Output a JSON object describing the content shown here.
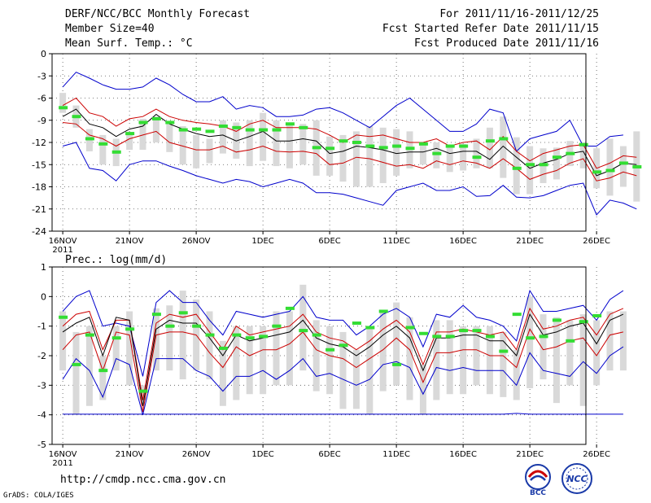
{
  "header": {
    "title": "DERF/NCC/BCC Monthly Forecast",
    "member_size": "Member Size=40",
    "variable": "Mean Surf. Temp.: °C",
    "forecast_period": "For 2011/11/16-2011/12/25",
    "start_date": "Fcst Started Refer Date 2011/11/15",
    "produced_date": "Fcst Produced Date 2011/11/16"
  },
  "footer": {
    "url": "http://cmdp.ncc.cma.gov.cn",
    "credit": "GrADS: COLA/IGES",
    "logo_left": "BCC",
    "logo_right": "NCC"
  },
  "colors": {
    "envelope": "#0000cc",
    "quartile": "#cc0000",
    "mean": "#000000",
    "box": "#d9d9d9",
    "marker": "#33dd33",
    "grid": "#555555"
  },
  "chart_data": [
    {
      "type": "line",
      "name": "temperature",
      "title": "Mean Surf. Temp.: °C",
      "ylim": [
        -24,
        0
      ],
      "yticks": [
        0,
        -3,
        -6,
        -9,
        -12,
        -15,
        -18,
        -21,
        -24
      ],
      "xlim": [
        0,
        40
      ],
      "xtick_days": [
        0,
        5,
        10,
        15,
        20,
        25,
        30,
        35,
        40
      ],
      "xtick_labels": [
        "16NOV",
        "21NOV",
        "26NOV",
        "1DEC",
        "6DEC",
        "11DEC",
        "16DEC",
        "21DEC",
        "26DEC"
      ],
      "year_label": "2011",
      "series": [
        {
          "name": "max",
          "values": [
            -4.5,
            -2.5,
            -3.3,
            -4.2,
            -4.8,
            -4.8,
            -4.5,
            -3.3,
            -4.2,
            -5.5,
            -6.5,
            -6.5,
            -5.8,
            -7.5,
            -7.0,
            -7.3,
            -8.5,
            -8.5,
            -8.3,
            -7.5,
            -7.3,
            -8.0,
            -9.0,
            -10.0,
            -8.5,
            -7.0,
            -6.0,
            -7.5,
            -9.0,
            -10.5,
            -10.5,
            -9.5,
            -7.5,
            -8.0,
            -13.2,
            -11.5,
            -11.0,
            -10.5,
            -9.0,
            -12.5,
            -12.5,
            -11.2,
            -11.0
          ]
        },
        {
          "name": "q75",
          "values": [
            -7.0,
            -6.0,
            -8.0,
            -8.5,
            -9.8,
            -8.8,
            -8.5,
            -7.5,
            -8.5,
            -9.0,
            -9.3,
            -9.5,
            -9.8,
            -10.5,
            -9.5,
            -9.0,
            -10.0,
            -10.0,
            -10.0,
            -10.2,
            -11.0,
            -12.0,
            -11.0,
            -11.2,
            -11.0,
            -11.5,
            -12.0,
            -12.0,
            -11.5,
            -12.5,
            -12.0,
            -11.8,
            -13.0,
            -11.2,
            -13.2,
            -14.5,
            -13.5,
            -13.0,
            -12.5,
            -12.3,
            -15.5,
            -14.8,
            -13.8,
            -14.0
          ]
        },
        {
          "name": "mean",
          "values": [
            -8.5,
            -7.5,
            -9.5,
            -10.0,
            -11.2,
            -10.2,
            -9.8,
            -8.2,
            -9.5,
            -10.2,
            -10.8,
            -11.2,
            -11.0,
            -11.8,
            -11.2,
            -10.5,
            -11.8,
            -11.8,
            -11.5,
            -11.8,
            -13.5,
            -13.2,
            -12.5,
            -12.7,
            -13.0,
            -13.5,
            -13.3,
            -13.3,
            -12.8,
            -13.5,
            -13.2,
            -13.2,
            -14.3,
            -12.5,
            -14.0,
            -15.5,
            -14.8,
            -14.3,
            -13.5,
            -13.2,
            -16.5,
            -15.8,
            -14.8,
            -15.0
          ]
        },
        {
          "name": "q25",
          "values": [
            -9.3,
            -9.5,
            -11.0,
            -11.5,
            -12.5,
            -11.5,
            -11.0,
            -10.5,
            -12.0,
            -12.5,
            -13.0,
            -13.0,
            -12.5,
            -13.3,
            -13.0,
            -12.5,
            -13.2,
            -13.3,
            -13.2,
            -13.5,
            -15.0,
            -14.8,
            -14.0,
            -14.2,
            -14.7,
            -15.2,
            -15.0,
            -15.5,
            -14.5,
            -15.0,
            -14.5,
            -14.8,
            -15.5,
            -14.2,
            -15.5,
            -17.0,
            -16.3,
            -15.8,
            -14.8,
            -14.2,
            -17.2,
            -16.8,
            -16.0,
            -16.5
          ]
        },
        {
          "name": "min",
          "values": [
            -12.5,
            -12.0,
            -15.5,
            -15.8,
            -17.2,
            -15.0,
            -14.5,
            -14.5,
            -15.2,
            -15.8,
            -16.5,
            -17.0,
            -17.5,
            -17.0,
            -17.3,
            -18.0,
            -17.5,
            -17.0,
            -17.5,
            -18.8,
            -18.8,
            -19.0,
            -19.5,
            -20.0,
            -20.5,
            -18.5,
            -18.0,
            -17.5,
            -18.5,
            -18.5,
            -18.0,
            -19.3,
            -19.2,
            -17.8,
            -19.4,
            -19.5,
            -19.2,
            -18.5,
            -17.8,
            -17.5,
            -21.8,
            -19.8,
            -20.2,
            -21.0
          ]
        },
        {
          "name": "box_high",
          "values": [
            -5.3,
            -7.0,
            -10.2,
            -11.0,
            -11.5,
            -11.0,
            -8.8,
            -8.5,
            -9.5,
            -9.8,
            -11.0,
            -11.5,
            -9.0,
            -9.3,
            -9.0,
            -8.0,
            -9.0,
            -9.5,
            -9.5,
            -9.0,
            -11.2,
            -11.0,
            -10.5,
            -9.8,
            -10.0,
            -10.2,
            -10.5,
            -12.0,
            -12.0,
            -12.5,
            -12.2,
            -11.5,
            -10.0,
            -8.5,
            -11.3,
            -12.5,
            -12.8,
            -12.7,
            -11.8,
            -12.0,
            -12.8,
            -11.5,
            -12.5,
            -10.5
          ]
        },
        {
          "name": "box_low",
          "values": [
            -8.0,
            -10.0,
            -13.2,
            -15.0,
            -15.2,
            -13.0,
            -13.0,
            -12.0,
            -13.3,
            -15.0,
            -15.5,
            -14.8,
            -13.5,
            -14.2,
            -15.2,
            -14.5,
            -15.2,
            -15.5,
            -15.0,
            -16.5,
            -16.5,
            -17.3,
            -18.0,
            -18.0,
            -17.5,
            -16.5,
            -15.5,
            -15.0,
            -15.5,
            -16.0,
            -15.8,
            -15.5,
            -15.5,
            -16.8,
            -19.0,
            -19.0,
            -17.5,
            -17.0,
            -15.2,
            -15.5,
            -18.2,
            -19.2,
            -18.0,
            -20.0
          ]
        },
        {
          "name": "observed_marker",
          "values": [
            -7.3,
            -8.5,
            -11.5,
            -12.2,
            -13.3,
            -10.8,
            -9.3,
            -8.8,
            -9.3,
            -10.3,
            -10.2,
            -10.5,
            -9.8,
            -10.0,
            -10.3,
            -10.3,
            -10.3,
            -9.5,
            -10.0,
            -12.7,
            -12.8,
            -11.8,
            -12.0,
            -12.5,
            -12.7,
            -12.5,
            -12.8,
            -12.2,
            -13.5,
            -12.5,
            -12.5,
            -14.0,
            -11.8,
            -11.5,
            -15.5,
            -15.0,
            -15.0,
            -14.0,
            -13.5,
            -12.3,
            -16.0,
            -15.8,
            -14.8,
            -15.3
          ]
        }
      ]
    },
    {
      "type": "line",
      "name": "precipitation",
      "title": "Prec.: log(mm/d)",
      "ylim": [
        -5,
        1
      ],
      "yticks": [
        1,
        0,
        -1,
        -2,
        -3,
        -4,
        -5
      ],
      "xlim": [
        0,
        40
      ],
      "xtick_days": [
        0,
        5,
        10,
        15,
        20,
        25,
        30,
        35,
        40
      ],
      "xtick_labels": [
        "16NOV",
        "21NOV",
        "26NOV",
        "1DEC",
        "6DEC",
        "11DEC",
        "16DEC",
        "21DEC",
        "26DEC"
      ],
      "year_label": "2011",
      "series": [
        {
          "name": "max",
          "values": [
            -0.5,
            0.0,
            0.2,
            -1.0,
            -0.9,
            -1.0,
            -2.7,
            -0.2,
            0.2,
            -0.2,
            -0.2,
            -0.8,
            -1.3,
            -0.5,
            -0.6,
            -0.7,
            -0.6,
            -0.5,
            0.0,
            -0.7,
            -0.8,
            -0.8,
            -1.3,
            -1.0,
            -0.6,
            -0.4,
            -0.7,
            -1.7,
            -0.6,
            -0.7,
            -0.3,
            -0.7,
            -0.8,
            -1.0,
            -1.5,
            0.2,
            -0.5,
            -0.5,
            -0.4,
            -0.3,
            -0.8,
            -0.1,
            0.2
          ]
        },
        {
          "name": "q75",
          "values": [
            -1.0,
            -0.6,
            -0.5,
            -1.8,
            -0.8,
            -0.8,
            -3.5,
            -0.9,
            -0.6,
            -0.7,
            -0.6,
            -1.2,
            -1.8,
            -1.0,
            -1.3,
            -1.2,
            -1.1,
            -1.0,
            -0.6,
            -1.2,
            -1.4,
            -1.5,
            -1.8,
            -1.5,
            -1.1,
            -0.8,
            -1.2,
            -2.3,
            -1.2,
            -1.2,
            -1.1,
            -1.2,
            -1.3,
            -1.2,
            -1.8,
            -0.4,
            -1.1,
            -1.0,
            -0.8,
            -0.7,
            -1.3,
            -0.6,
            -0.4
          ]
        },
        {
          "name": "mean",
          "values": [
            -1.2,
            -0.9,
            -0.7,
            -2.0,
            -0.7,
            -0.8,
            -3.7,
            -1.1,
            -0.8,
            -0.9,
            -0.9,
            -1.4,
            -2.0,
            -1.3,
            -1.5,
            -1.4,
            -1.3,
            -1.2,
            -0.8,
            -1.4,
            -1.6,
            -1.7,
            -2.0,
            -1.7,
            -1.3,
            -1.0,
            -1.4,
            -2.5,
            -1.4,
            -1.4,
            -1.3,
            -1.3,
            -1.5,
            -1.5,
            -2.0,
            -0.6,
            -1.3,
            -1.2,
            -1.0,
            -0.9,
            -1.6,
            -0.8,
            -0.6
          ]
        },
        {
          "name": "q25",
          "values": [
            -1.8,
            -1.3,
            -1.2,
            -2.5,
            -1.2,
            -1.3,
            -3.9,
            -1.3,
            -1.2,
            -1.2,
            -1.3,
            -1.9,
            -2.4,
            -1.7,
            -2.0,
            -1.8,
            -1.8,
            -1.6,
            -1.2,
            -1.8,
            -2.0,
            -2.1,
            -2.4,
            -2.1,
            -1.8,
            -1.4,
            -1.8,
            -2.9,
            -1.9,
            -1.9,
            -1.8,
            -1.8,
            -2.0,
            -2.0,
            -2.4,
            -1.1,
            -1.8,
            -1.7,
            -1.5,
            -1.4,
            -2.0,
            -1.3,
            -1.2
          ]
        },
        {
          "name": "min",
          "values": [
            -2.8,
            -2.1,
            -2.5,
            -3.4,
            -2.1,
            -2.3,
            -4.0,
            -2.1,
            -2.1,
            -2.1,
            -2.5,
            -2.7,
            -3.2,
            -2.7,
            -2.7,
            -2.5,
            -2.8,
            -2.5,
            -2.1,
            -2.7,
            -2.6,
            -2.8,
            -3.0,
            -2.8,
            -2.3,
            -2.2,
            -2.4,
            -3.3,
            -2.4,
            -2.5,
            -2.4,
            -2.5,
            -2.5,
            -2.5,
            -3.0,
            -1.9,
            -2.5,
            -2.6,
            -2.7,
            -2.2,
            -2.6,
            -2.0,
            -1.7
          ]
        },
        {
          "name": "floor",
          "values": [
            -3.98,
            -3.98,
            -3.98,
            -3.98,
            -3.98,
            -3.98,
            -3.98,
            -3.98,
            -3.98,
            -3.98,
            -3.98,
            -3.98,
            -3.98,
            -3.98,
            -3.98,
            -3.98,
            -3.98,
            -3.98,
            -3.98,
            -3.98,
            -3.98,
            -3.98,
            -3.98,
            -3.98,
            -3.98,
            -3.98,
            -3.98,
            -3.98,
            -3.98,
            -3.98,
            -3.98,
            -3.98,
            -3.98,
            -3.98,
            -3.95,
            -3.98,
            -3.98,
            -3.98,
            -3.98,
            -3.98,
            -3.98,
            -3.98,
            -3.98
          ]
        },
        {
          "name": "box_high",
          "values": [
            -0.5,
            -1.2,
            -1.0,
            -2.0,
            -1.0,
            -0.5,
            -3.0,
            -0.4,
            -0.3,
            0.2,
            -0.1,
            -0.5,
            -1.5,
            -1.0,
            -1.0,
            -1.0,
            -0.5,
            -0.5,
            0.4,
            -0.8,
            -1.0,
            -1.2,
            -1.8,
            -1.0,
            -0.5,
            -0.2,
            -0.7,
            -2.3,
            -0.8,
            -0.8,
            -1.0,
            -1.0,
            -1.0,
            -1.2,
            -1.8,
            0.0,
            -0.6,
            -0.7,
            -0.8,
            -0.6,
            -0.8,
            -0.5,
            -0.5
          ]
        },
        {
          "name": "box_low",
          "values": [
            -2.5,
            -4.0,
            -3.7,
            -3.5,
            -2.5,
            -3.0,
            -3.5,
            -2.5,
            -2.5,
            -2.8,
            -2.5,
            -2.8,
            -3.7,
            -3.5,
            -3.3,
            -3.3,
            -3.0,
            -3.0,
            -2.5,
            -3.2,
            -3.3,
            -3.8,
            -3.8,
            -4.0,
            -3.2,
            -3.0,
            -3.5,
            -4.0,
            -3.5,
            -3.3,
            -3.3,
            -3.0,
            -3.3,
            -3.4,
            -3.5,
            -3.1,
            -2.8,
            -3.6,
            -3.0,
            -3.7,
            -3.0,
            -2.5,
            -2.5
          ]
        },
        {
          "name": "observed_marker",
          "values": [
            -0.7,
            -2.3,
            -1.3,
            -2.5,
            -1.4,
            -1.1,
            -3.2,
            -0.6,
            -1.0,
            -0.55,
            -1.0,
            -1.3,
            -1.75,
            -1.3,
            -1.4,
            -1.35,
            -1.0,
            -0.4,
            -1.15,
            -1.3,
            -1.8,
            -1.65,
            -0.9,
            -1.05,
            -0.5,
            -2.3,
            -1.05,
            -1.25,
            -1.35,
            -1.35,
            -1.15,
            -1.15,
            -1.35,
            -1.85,
            -0.6,
            -1.4,
            -1.35,
            -0.8,
            -1.5,
            -0.85,
            -0.65
          ]
        }
      ]
    }
  ]
}
